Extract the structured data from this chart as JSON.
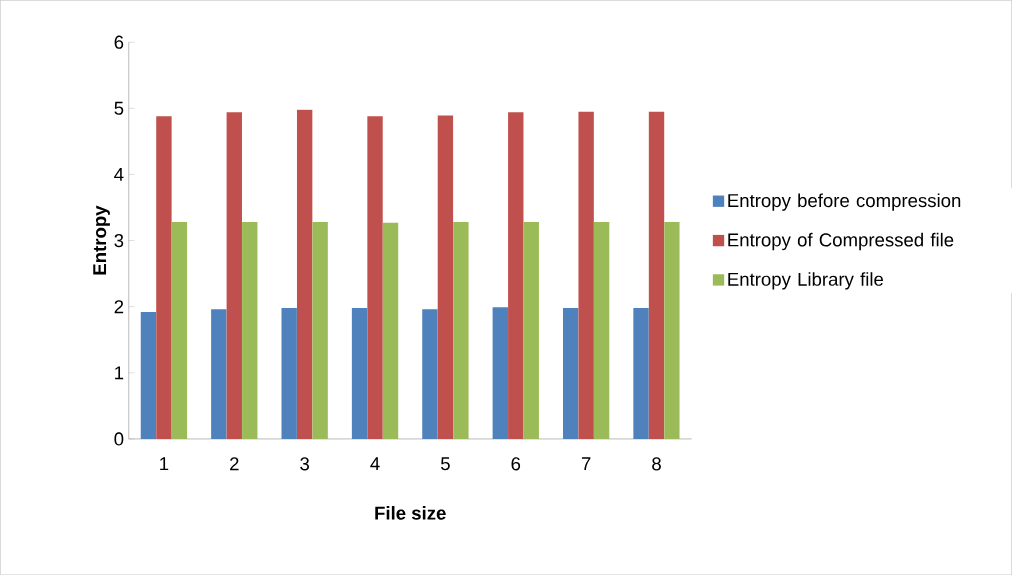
{
  "chart_data": {
    "type": "bar",
    "xlabel": "File size",
    "ylabel": "Entropy",
    "categories": [
      "1",
      "2",
      "3",
      "4",
      "5",
      "6",
      "7",
      "8"
    ],
    "series": [
      {
        "name": "Entropy before compression",
        "color": "#4f81bd",
        "values": [
          1.92,
          1.96,
          1.98,
          1.98,
          1.96,
          1.99,
          1.98,
          1.98
        ]
      },
      {
        "name": "Entropy of Compressed file",
        "color": "#c0504d",
        "values": [
          4.88,
          4.94,
          4.98,
          4.88,
          4.89,
          4.94,
          4.95,
          4.95
        ]
      },
      {
        "name": "Entropy Library  file",
        "color": "#9bbb59",
        "values": [
          3.28,
          3.28,
          3.28,
          3.27,
          3.28,
          3.28,
          3.28,
          3.28
        ]
      }
    ],
    "ylim": [
      0,
      6
    ],
    "yticks": [
      0,
      1,
      2,
      3,
      4,
      5,
      6
    ],
    "grid": false,
    "legend": "right"
  }
}
